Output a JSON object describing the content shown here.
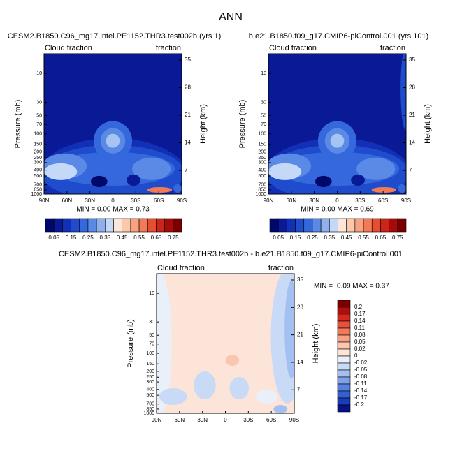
{
  "title": "ANN",
  "chart_data": [
    {
      "type": "contour",
      "subtitle": "CESM2.B1850.C96_mg17.intel.PE1152.THR3.test002b (yrs 1)",
      "left_label": "Cloud fraction",
      "right_label": "fraction",
      "ylabel": "Pressure (mb)",
      "y2label": "Height (km)",
      "stats": "MIN =   0.00   MAX =   0.73",
      "log_y": true,
      "xlim": [
        90,
        -90
      ],
      "xticks": [
        {
          "value": 90,
          "label": "90N"
        },
        {
          "value": 60,
          "label": "60N"
        },
        {
          "value": 30,
          "label": "30N"
        },
        0,
        {
          "value": -30,
          "label": "30S"
        },
        {
          "value": -60,
          "label": "60S"
        },
        {
          "value": -90,
          "label": "90S"
        }
      ],
      "ylim": [
        1000,
        4.7
      ],
      "yticks": [
        10,
        30,
        50,
        70,
        100,
        150,
        200,
        250,
        300,
        400,
        500,
        700,
        850,
        1000
      ],
      "y2lim": [
        1,
        36.6
      ],
      "y2ticks": [
        35,
        28,
        21,
        14,
        7
      ],
      "colorbar": {
        "orientation": "horizontal",
        "lim": [
          0,
          0.8
        ],
        "labels": [
          0.05,
          0.15,
          0.25,
          0.35,
          0.45,
          0.55,
          0.65,
          0.75
        ],
        "colors": [
          "#00086c",
          "#0a1a96",
          "#1230b6",
          "#1e4ccc",
          "#3468dc",
          "#5a8ae6",
          "#8cb0f0",
          "#c4d8f8",
          "#fde6d8",
          "#fcc8aa",
          "#f8a280",
          "#f27a56",
          "#e64e32",
          "#cc2418",
          "#a80a0a",
          "#7a0000"
        ]
      }
    },
    {
      "type": "contour",
      "subtitle": "b.e21.B1850.f09_g17.CMIP6-piControl.001 (yrs 101)",
      "left_label": "Cloud fraction",
      "right_label": "fraction",
      "ylabel": "Pressure (mb)",
      "y2label": "Height (km)",
      "stats": "MIN =   0.00   MAX =   0.69",
      "log_y": true,
      "xlim": [
        90,
        -90
      ],
      "xticks": [
        {
          "value": 90,
          "label": "90N"
        },
        {
          "value": 60,
          "label": "60N"
        },
        {
          "value": 30,
          "label": "30N"
        },
        0,
        {
          "value": -30,
          "label": "30S"
        },
        {
          "value": -60,
          "label": "60S"
        },
        {
          "value": -90,
          "label": "90S"
        }
      ],
      "ylim": [
        1000,
        4.7
      ],
      "yticks": [
        10,
        30,
        50,
        70,
        100,
        150,
        200,
        250,
        300,
        400,
        500,
        700,
        850,
        1000
      ],
      "y2lim": [
        1,
        36.6
      ],
      "y2ticks": [
        35,
        28,
        21,
        14,
        7
      ],
      "colorbar": {
        "orientation": "horizontal",
        "lim": [
          0,
          0.8
        ],
        "labels": [
          0.05,
          0.15,
          0.25,
          0.35,
          0.45,
          0.55,
          0.65,
          0.75
        ],
        "colors": [
          "#00086c",
          "#0a1a96",
          "#1230b6",
          "#1e4ccc",
          "#3468dc",
          "#5a8ae6",
          "#8cb0f0",
          "#c4d8f8",
          "#fde6d8",
          "#fcc8aa",
          "#f8a280",
          "#f27a56",
          "#e64e32",
          "#cc2418",
          "#a80a0a",
          "#7a0000"
        ]
      }
    },
    {
      "type": "contour",
      "subtitle": "CESM2.B1850.C96_mg17.intel.PE1152.THR3.test002b - b.e21.B1850.f09_g17.CMIP6-piControl.001",
      "left_label": "Cloud fraction",
      "right_label": "fraction",
      "ylabel": "Pressure (mb)",
      "y2label": "Height (km)",
      "stats": "MIN = -0.09  MAX =   0.37",
      "log_y": true,
      "xlim": [
        90,
        -90
      ],
      "xticks": [
        {
          "value": 90,
          "label": "90N"
        },
        {
          "value": 60,
          "label": "60N"
        },
        {
          "value": 30,
          "label": "30N"
        },
        0,
        {
          "value": -30,
          "label": "30S"
        },
        {
          "value": -60,
          "label": "60S"
        },
        {
          "value": -90,
          "label": "90S"
        }
      ],
      "ylim": [
        1000,
        4.7
      ],
      "yticks": [
        10,
        30,
        50,
        70,
        100,
        150,
        200,
        250,
        300,
        400,
        500,
        700,
        850,
        1000
      ],
      "y2lim": [
        1,
        36.6
      ],
      "y2ticks": [
        35,
        28,
        21,
        14,
        7
      ],
      "colorbar": {
        "orientation": "vertical",
        "labels": [
          0.2,
          0.17,
          0.14,
          0.11,
          0.08,
          0.05,
          0.02,
          0,
          -0.02,
          -0.05,
          -0.08,
          -0.11,
          -0.14,
          -0.17,
          -0.2
        ],
        "colors": [
          "#7a0000",
          "#b00e0e",
          "#d42a1c",
          "#e8503a",
          "#f27a5a",
          "#f8a284",
          "#fcc6ae",
          "#fde4d8",
          "#eaf0fa",
          "#c8daf6",
          "#a4c0f0",
          "#7ea2ea",
          "#5880e0",
          "#3460d2",
          "#1a3cb8",
          "#06128c"
        ]
      }
    }
  ]
}
